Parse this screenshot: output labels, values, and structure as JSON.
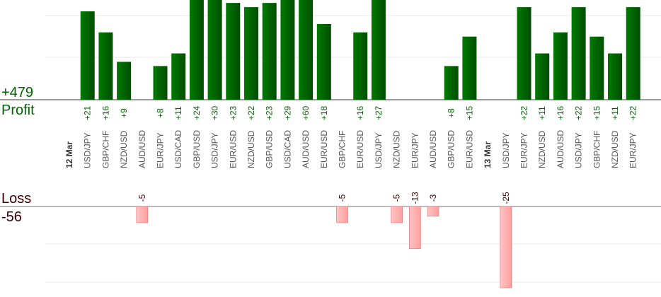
{
  "summary": {
    "profit_total": "+479",
    "profit_label": "Profit",
    "loss_label": "Loss",
    "loss_total": "-56"
  },
  "colors": {
    "profit_bar_dark": "#004d00",
    "profit_bar_light": "#007a00",
    "profit_label": "#006400",
    "loss_bar_fill": "#ffb3b3",
    "loss_bar_edge": "#e07070",
    "loss_label": "#3b0000",
    "axis_text": "#555555",
    "date_text": "#333333",
    "grid": "#e8e8e8"
  },
  "chart_data": {
    "type": "bar",
    "groups": [
      {
        "date": "12 Mar",
        "trades": [
          {
            "pair": "USD/JPY",
            "profit": 21
          },
          {
            "pair": "GBP/CHF",
            "profit": 16
          },
          {
            "pair": "NZD/USD",
            "profit": 9
          },
          {
            "pair": "AUD/USD",
            "loss": -5
          },
          {
            "pair": "EUR/JPY",
            "profit": 8
          },
          {
            "pair": "USD/CAD",
            "profit": 11
          },
          {
            "pair": "GBP/USD",
            "profit": 24
          },
          {
            "pair": "USD/JPY",
            "profit": 30
          },
          {
            "pair": "EUR/USD",
            "profit": 23
          },
          {
            "pair": "NZD/USD",
            "profit": 22
          },
          {
            "pair": "GBP/USD",
            "profit": 23
          },
          {
            "pair": "USD/CAD",
            "profit": 29
          },
          {
            "pair": "AUD/USD",
            "profit": 60
          },
          {
            "pair": "EUR/USD",
            "profit": 18
          },
          {
            "pair": "GBP/CHF",
            "loss": -5
          },
          {
            "pair": "EUR/USD",
            "profit": 16
          },
          {
            "pair": "USD/JPY",
            "profit": 27
          },
          {
            "pair": "NZD/USD",
            "loss": -5
          },
          {
            "pair": "EUR/JPY",
            "loss": -13
          },
          {
            "pair": "AUD/USD",
            "loss": -3
          },
          {
            "pair": "GBP/USD",
            "profit": 8
          },
          {
            "pair": "EUR/USD",
            "profit": 15
          }
        ]
      },
      {
        "date": "13 Mar",
        "trades": [
          {
            "pair": "USD/JPY",
            "loss": -25
          },
          {
            "pair": "EUR/JPY",
            "profit": 22
          },
          {
            "pair": "NZD/USD",
            "profit": 11
          },
          {
            "pair": "AUD/USD",
            "profit": 16
          },
          {
            "pair": "USD/JPY",
            "profit": 22
          },
          {
            "pair": "GBP/CHF",
            "profit": 15
          },
          {
            "pair": "NZD/USD",
            "profit": 11
          },
          {
            "pair": "EUR/JPY",
            "profit": 22
          }
        ]
      }
    ],
    "profit_axis_max": 22,
    "loss_axis_min": -25,
    "grid": true
  }
}
